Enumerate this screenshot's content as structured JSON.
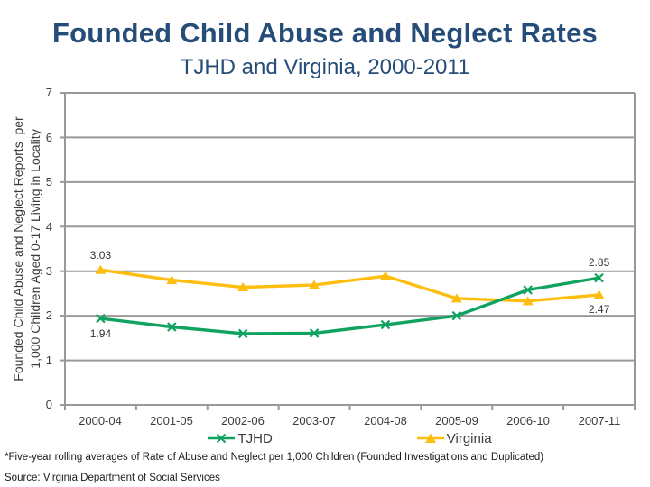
{
  "slide": {
    "title": "Founded Child Abuse and Neglect Rates",
    "subtitle": "TJHD and Virginia, 2000-2011"
  },
  "chart_data": {
    "type": "line",
    "title": "Founded Child Abuse and Neglect Rates",
    "subtitle": "TJHD and Virginia, 2000-2011",
    "categories": [
      "2000-04",
      "2001-05",
      "2002-06",
      "2003-07",
      "2004-08",
      "2005-09",
      "2006-10",
      "2007-11"
    ],
    "series": [
      {
        "name": "Virginia",
        "color": "#fdbe10",
        "marker": "triangle",
        "values": [
          3.03,
          2.8,
          2.64,
          2.69,
          2.89,
          2.39,
          2.33,
          2.47
        ]
      },
      {
        "name": "TJHD",
        "color": "#10a360",
        "marker": "x",
        "values": [
          1.94,
          1.75,
          1.6,
          1.61,
          1.8,
          2.0,
          2.58,
          2.85
        ]
      }
    ],
    "point_labels": [
      {
        "series": "Virginia",
        "index": 0,
        "text": "3.03",
        "dy": -16
      },
      {
        "series": "TJHD",
        "index": 0,
        "text": "1.94",
        "dy": 17
      },
      {
        "series": "TJHD",
        "index": 7,
        "text": "2.85",
        "dy": -17
      },
      {
        "series": "Virginia",
        "index": 7,
        "text": "2.47",
        "dy": 16
      }
    ],
    "y_ticks": [
      0,
      1,
      2,
      3,
      4,
      5,
      6,
      7
    ],
    "ylim": [
      0,
      7
    ],
    "ylabel_line1": "Founded Child Abuse and Neglect Reports  per",
    "ylabel_line2": "1,000 Children Aged 0-17 Living in Locality",
    "xlabel": "",
    "grid": "horizontal",
    "legend_position": "bottom",
    "legend": [
      "TJHD",
      "Virginia"
    ],
    "colors": {
      "title_blue": "#254d78",
      "tjhd_green": "#10a360",
      "virginia_yellow": "#fdbe10",
      "gridline": "#999999",
      "text": "#3c3c3c"
    }
  },
  "footnotes": {
    "note": "*Five-year rolling averages of Rate of Abuse and Neglect per 1,000 Children (Founded Investigations and Duplicated)",
    "source": "Source: Virginia Department of Social Services"
  }
}
